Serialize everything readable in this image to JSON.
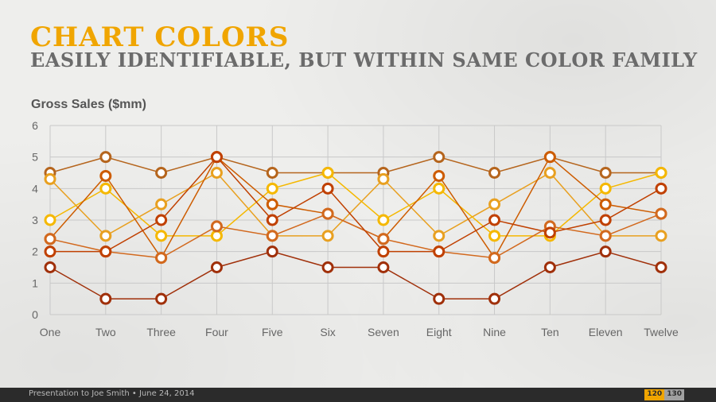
{
  "slide": {
    "title": "CHART COLORS",
    "subtitle": "EASILY IDENTIFIABLE, BUT WITHIN SAME COLOR FAMILY",
    "title_color": "#f0a500"
  },
  "footer": {
    "text": "Presentation to Joe Smith • June 24, 2014",
    "page_current": "120",
    "page_total": "130"
  },
  "chart_data": {
    "type": "line",
    "title": "Gross Sales ($mm)",
    "categories": [
      "One",
      "Two",
      "Three",
      "Four",
      "Five",
      "Six",
      "Seven",
      "Eight",
      "Nine",
      "Ten",
      "Eleven",
      "Twelve"
    ],
    "ylim": [
      0,
      6
    ],
    "yticks": [
      0,
      1,
      2,
      3,
      4,
      5,
      6
    ],
    "grid": true,
    "series": [
      {
        "color": "#b5651d",
        "values": [
          4.5,
          5,
          4.5,
          5,
          4.5,
          4.5,
          4.5,
          5,
          4.5,
          5,
          4.5,
          4.5
        ]
      },
      {
        "color": "#e8a020",
        "values": [
          4.3,
          2.5,
          3.5,
          4.5,
          2.5,
          2.5,
          4.3,
          2.5,
          3.5,
          4.5,
          2.5,
          2.5
        ]
      },
      {
        "color": "#f5b800",
        "values": [
          3,
          4,
          2.5,
          2.5,
          4,
          4.5,
          3,
          4,
          2.5,
          2.5,
          4,
          4.5
        ]
      },
      {
        "color": "#cd5c00",
        "values": [
          2.4,
          4.4,
          1.8,
          5,
          3.5,
          3.2,
          2.4,
          4.4,
          1.8,
          5,
          3.5,
          3.2
        ]
      },
      {
        "color": "#d2691e",
        "values": [
          2.4,
          2,
          1.8,
          2.8,
          2.5,
          3.2,
          2.4,
          2,
          1.8,
          2.8,
          2.5,
          3.2
        ]
      },
      {
        "color": "#c04000",
        "values": [
          2,
          2,
          3,
          5,
          3,
          4,
          2,
          2,
          3,
          2.6,
          3,
          4
        ]
      },
      {
        "color": "#a0300a",
        "values": [
          1.5,
          0.5,
          0.5,
          1.5,
          2,
          1.5,
          1.5,
          0.5,
          0.5,
          1.5,
          2,
          1.5
        ]
      }
    ]
  }
}
